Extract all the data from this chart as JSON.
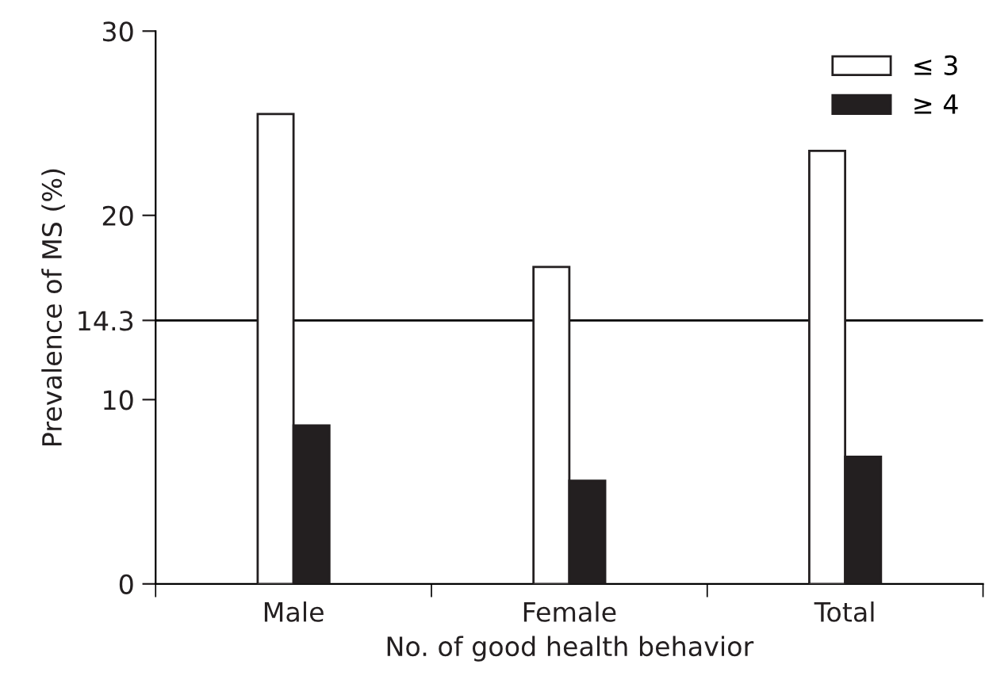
{
  "chart_data": {
    "type": "bar",
    "xlabel": "No. of good health behavior",
    "ylabel": "Prevalence of MS (%)",
    "categories": [
      "Male",
      "Female",
      "Total"
    ],
    "series": [
      {
        "name": "≤ 3",
        "color": "#ffffff",
        "values": [
          25.5,
          17.2,
          23.5
        ]
      },
      {
        "name": "≥ 4",
        "color": "#231f20",
        "values": [
          8.6,
          5.6,
          6.9
        ]
      }
    ],
    "ylim": [
      0,
      30
    ],
    "yticks": [
      0,
      10,
      14.3,
      20,
      30
    ],
    "ref_lines": [
      {
        "axis": "y",
        "value": 14.3,
        "color": "#000000",
        "line_style": "solid"
      }
    ],
    "legend": "top right",
    "grid": false
  }
}
